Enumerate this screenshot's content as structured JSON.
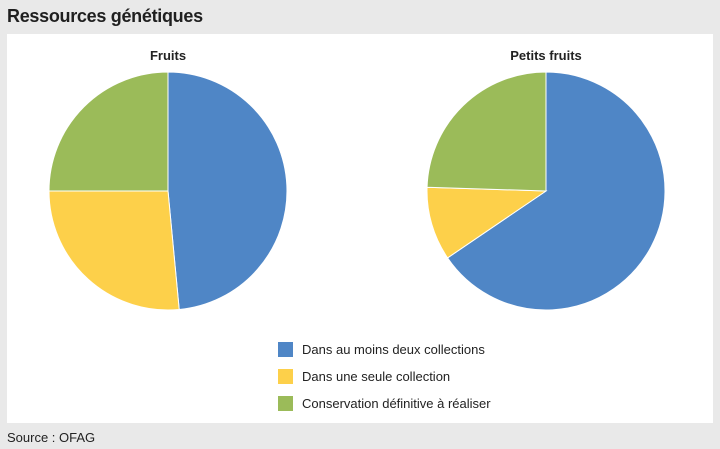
{
  "header": {
    "title": "Ressources génétiques"
  },
  "source": "Source : OFAG",
  "colors": {
    "Dans au moins deux collections": "#4f86c6",
    "Dans une seule collection": "#fdd04a",
    "Conservation définitive à réaliser": "#9bbb59"
  },
  "chart_data": [
    {
      "type": "pie",
      "title": "Fruits",
      "labels": [
        "Dans au moins deux collections",
        "Dans une seule collection",
        "Conservation définitive à réaliser"
      ],
      "values": [
        48.5,
        26.5,
        25.0
      ],
      "legend": "bottom"
    },
    {
      "type": "pie",
      "title": "Petits fruits",
      "labels": [
        "Dans au moins deux collections",
        "Dans une seule collection",
        "Conservation définitive à réaliser"
      ],
      "values": [
        65.5,
        10.0,
        24.5
      ],
      "legend": "bottom"
    }
  ],
  "legend": {
    "items": [
      {
        "label": "Dans au moins deux collections",
        "color": "#4f86c6"
      },
      {
        "label": "Dans une seule collection",
        "color": "#fdd04a"
      },
      {
        "label": "Conservation définitive à réaliser",
        "color": "#9bbb59"
      }
    ]
  }
}
